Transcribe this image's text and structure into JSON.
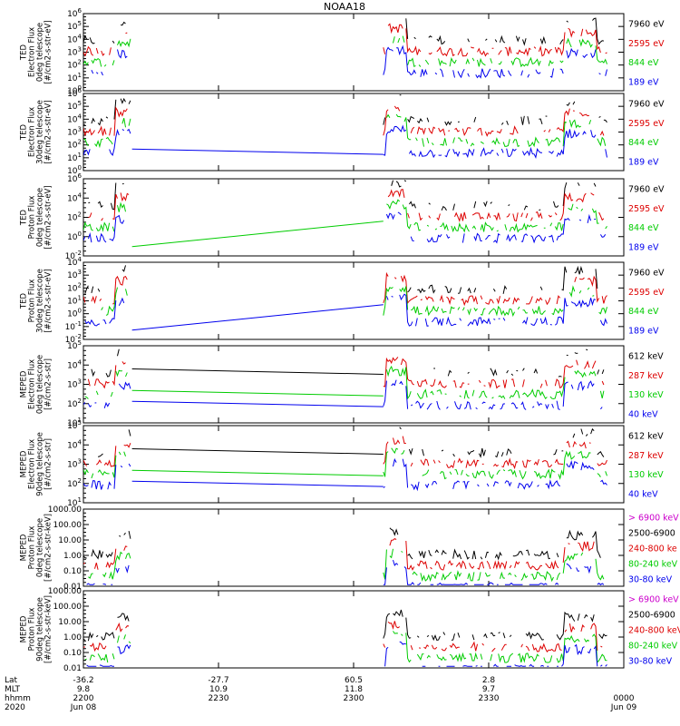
{
  "chart_data": {
    "type": "line",
    "title": "NOAA18",
    "xaxis": {
      "row_labels": [
        "Lat",
        "MLT",
        "hhmm",
        "2020"
      ],
      "ticks": [
        {
          "lat": "-36.2",
          "mlt": "9.8",
          "hhmm": "2200",
          "date": "Jun 08"
        },
        {
          "lat": "-27.7",
          "mlt": "10.9",
          "hhmm": "2230",
          "date": ""
        },
        {
          "lat": "60.5",
          "mlt": "11.8",
          "hhmm": "2300",
          "date": ""
        },
        {
          "lat": "2.8",
          "mlt": "9.7",
          "hhmm": "2330",
          "date": ""
        },
        {
          "lat": "",
          "mlt": "",
          "hhmm": "0000",
          "date": "Jun 09"
        }
      ]
    },
    "panels": [
      {
        "ylabel": [
          "TED",
          "Electron Flux",
          "0deg telescope",
          "[#/cm2-s-str-eV]"
        ],
        "yticks": [
          "10^0",
          "10^1",
          "10^2",
          "10^3",
          "10^4",
          "10^5",
          "10^6"
        ],
        "legend": [
          {
            "label": "7960 eV",
            "color": "#000000"
          },
          {
            "label": "2595 eV",
            "color": "#dd0000"
          },
          {
            "label": "844 eV",
            "color": "#00cc00"
          },
          {
            "label": "189 eV",
            "color": "#0000ee"
          }
        ]
      },
      {
        "ylabel": [
          "TED",
          "Electron Flux",
          "30deg telescope",
          "[#/cm2-s-str-eV]"
        ],
        "yticks": [
          "10^0",
          "10^1",
          "10^2",
          "10^3",
          "10^4",
          "10^5",
          "10^6"
        ],
        "legend": [
          {
            "label": "7960 eV",
            "color": "#000000"
          },
          {
            "label": "2595 eV",
            "color": "#dd0000"
          },
          {
            "label": "844 eV",
            "color": "#00cc00"
          },
          {
            "label": "189 eV",
            "color": "#0000ee"
          }
        ]
      },
      {
        "ylabel": [
          "TED",
          "Proton Flux",
          "0deg telescope",
          "[#/cm2-s-str-eV]"
        ],
        "yticks": [
          "10^-2",
          "10^0",
          "10^2",
          "10^4",
          "10^6"
        ],
        "legend": [
          {
            "label": "7960 eV",
            "color": "#000000"
          },
          {
            "label": "2595 eV",
            "color": "#dd0000"
          },
          {
            "label": "844 eV",
            "color": "#00cc00"
          },
          {
            "label": "189 eV",
            "color": "#0000ee"
          }
        ]
      },
      {
        "ylabel": [
          "TED",
          "Proton Flux",
          "30deg telescope",
          "[#/cm2-s-str-eV]"
        ],
        "yticks": [
          "10^-2",
          "10^-1",
          "10^0",
          "10^1",
          "10^2",
          "10^3",
          "10^4"
        ],
        "legend": [
          {
            "label": "7960 eV",
            "color": "#000000"
          },
          {
            "label": "2595 eV",
            "color": "#dd0000"
          },
          {
            "label": "844 eV",
            "color": "#00cc00"
          },
          {
            "label": "189 eV",
            "color": "#0000ee"
          }
        ]
      },
      {
        "ylabel": [
          "MEPED",
          "Electron Flux",
          "0deg telescope",
          "[#/cm2-s-str]"
        ],
        "yticks": [
          "10^1",
          "10^2",
          "10^3",
          "10^4",
          "10^5"
        ],
        "legend": [
          {
            "label": "612 keV",
            "color": "#000000"
          },
          {
            "label": "287 keV",
            "color": "#dd0000"
          },
          {
            "label": "130 keV",
            "color": "#00cc00"
          },
          {
            "label": "40 keV",
            "color": "#0000ee"
          }
        ]
      },
      {
        "ylabel": [
          "MEPED",
          "Electron Flux",
          "90deg telescope",
          "[#/cm2-s-str]"
        ],
        "yticks": [
          "10^1",
          "10^2",
          "10^3",
          "10^4",
          "10^5"
        ],
        "legend": [
          {
            "label": "612 keV",
            "color": "#000000"
          },
          {
            "label": "287 keV",
            "color": "#dd0000"
          },
          {
            "label": "130 keV",
            "color": "#00cc00"
          },
          {
            "label": "40 keV",
            "color": "#0000ee"
          }
        ]
      },
      {
        "ylabel": [
          "MEPED",
          "Proton Flux",
          "0deg telescope",
          "[#/cm2-s-str-keV]"
        ],
        "yticks": [
          "0.01",
          "0.10",
          "1.00",
          "10.00",
          "100.00",
          "1000.00"
        ],
        "legend": [
          {
            "label": "> 6900 keV",
            "color": "#cc00cc"
          },
          {
            "label": "2500-6900",
            "color": "#000000"
          },
          {
            "label": "240-800 ke",
            "color": "#dd0000"
          },
          {
            "label": "80-240 keV",
            "color": "#00cc00"
          },
          {
            "label": "30-80 keV",
            "color": "#0000ee"
          }
        ]
      },
      {
        "ylabel": [
          "MEPED",
          "Proton Flux",
          "90deg telescope",
          "[#/cm2-s-str-keV]"
        ],
        "yticks": [
          "0.01",
          "0.10",
          "1.00",
          "10.00",
          "100.00",
          "1000.00"
        ],
        "legend": [
          {
            "label": "> 6900 keV",
            "color": "#cc00cc"
          },
          {
            "label": "2500-6900",
            "color": "#000000"
          },
          {
            "label": "240-800 keV",
            "color": "#dd0000"
          },
          {
            "label": "80-240 keV",
            "color": "#00cc00"
          },
          {
            "label": "30-80 keV",
            "color": "#0000ee"
          }
        ]
      }
    ]
  }
}
